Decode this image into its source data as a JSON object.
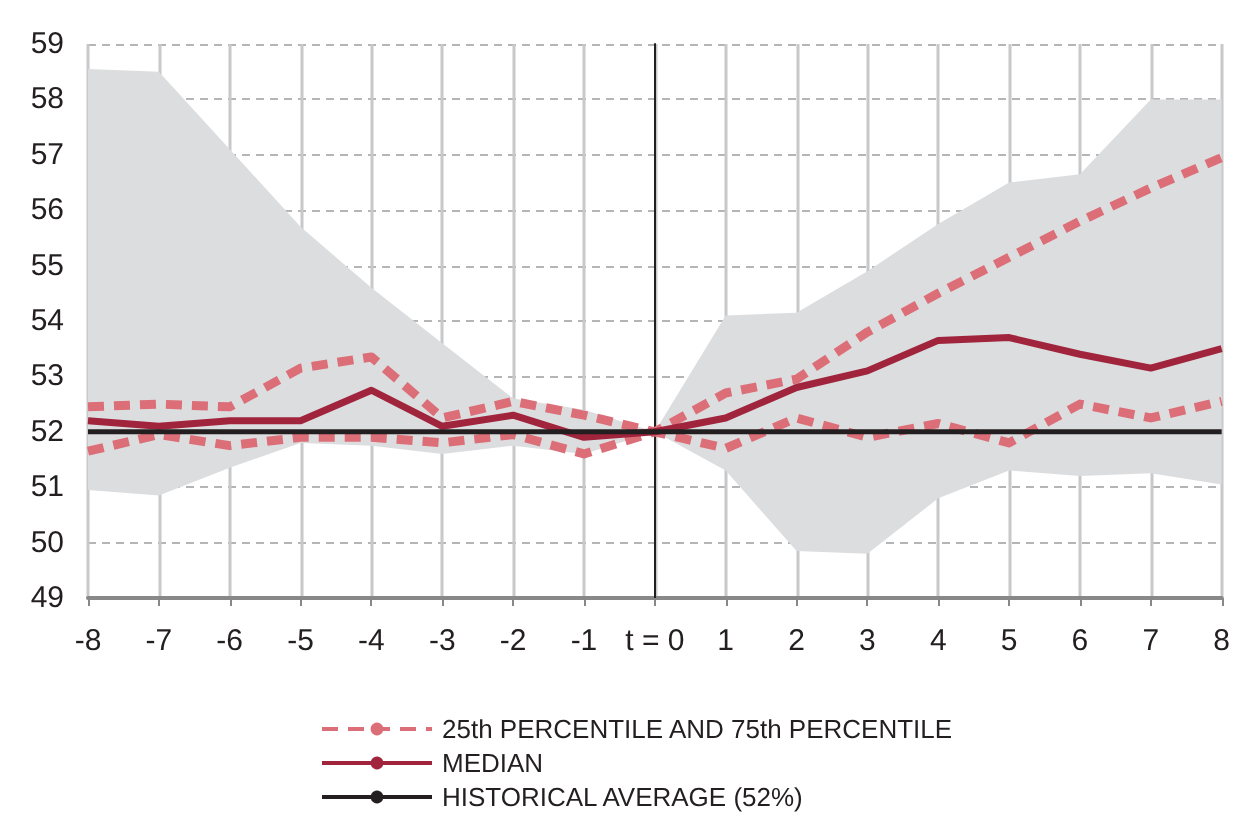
{
  "chart_data": {
    "type": "line",
    "x": [
      -8,
      -7,
      -6,
      -5,
      -4,
      -3,
      -2,
      -1,
      0,
      1,
      2,
      3,
      4,
      5,
      6,
      7,
      8
    ],
    "series": [
      {
        "name": "25th PERCENTILE AND 75th PERCENTILE",
        "color": "#dc6e78",
        "line_style": "dashed",
        "values": [
          52.45,
          52.5,
          52.45,
          53.15,
          53.35,
          52.25,
          52.55,
          52.3,
          52.0,
          52.7,
          52.95,
          53.8,
          54.5,
          55.15,
          55.8,
          56.4,
          56.95
        ]
      },
      {
        "color": "#dc6e78",
        "line_style": "dashed",
        "values": [
          51.65,
          51.95,
          51.75,
          51.9,
          51.9,
          51.8,
          51.95,
          51.6,
          52.0,
          51.7,
          52.25,
          51.9,
          52.15,
          51.8,
          52.5,
          52.25,
          52.55
        ]
      },
      {
        "name": "MEDIAN",
        "color": "#a0243c",
        "line_style": "solid",
        "values": [
          52.2,
          52.1,
          52.2,
          52.2,
          52.75,
          52.1,
          52.3,
          51.9,
          52.0,
          52.25,
          52.8,
          53.1,
          53.65,
          53.7,
          53.4,
          53.15,
          53.5
        ],
        "lower": [
          50.95,
          50.85,
          51.35,
          51.8,
          51.75,
          51.6,
          51.75,
          51.6,
          52.0,
          51.3,
          49.85,
          49.8,
          50.8,
          51.3,
          51.2,
          51.25,
          51.05
        ],
        "upper": [
          58.55,
          58.5,
          57.1,
          55.7,
          54.6,
          53.6,
          52.6,
          52.4,
          52.0,
          54.1,
          54.15,
          54.9,
          55.75,
          56.5,
          56.65,
          58.0,
          58.0
        ]
      },
      {
        "name": "HISTORICAL AVERAGE (52%)",
        "color": "#231f20",
        "line_style": "solid",
        "values": [
          52,
          52,
          52,
          52,
          52,
          52,
          52,
          52,
          52,
          52,
          52,
          52,
          52,
          52,
          52,
          52,
          52
        ]
      }
    ],
    "xlim": [
      -8,
      8
    ],
    "xticks": [
      -8,
      -7,
      -6,
      -5,
      -4,
      -3,
      -2,
      -1,
      {
        "value": 0,
        "label": "t = 0"
      },
      1,
      2,
      3,
      4,
      5,
      6,
      7,
      8
    ],
    "ylim": [
      49,
      59
    ],
    "yticks": [
      49,
      50,
      51,
      52,
      53,
      54,
      55,
      56,
      57,
      58,
      59
    ],
    "ref_lines": [
      {
        "axis": "x",
        "value": 0,
        "color": "#231f20"
      }
    ],
    "grid": true,
    "legend": "bottom",
    "marker": "none"
  }
}
